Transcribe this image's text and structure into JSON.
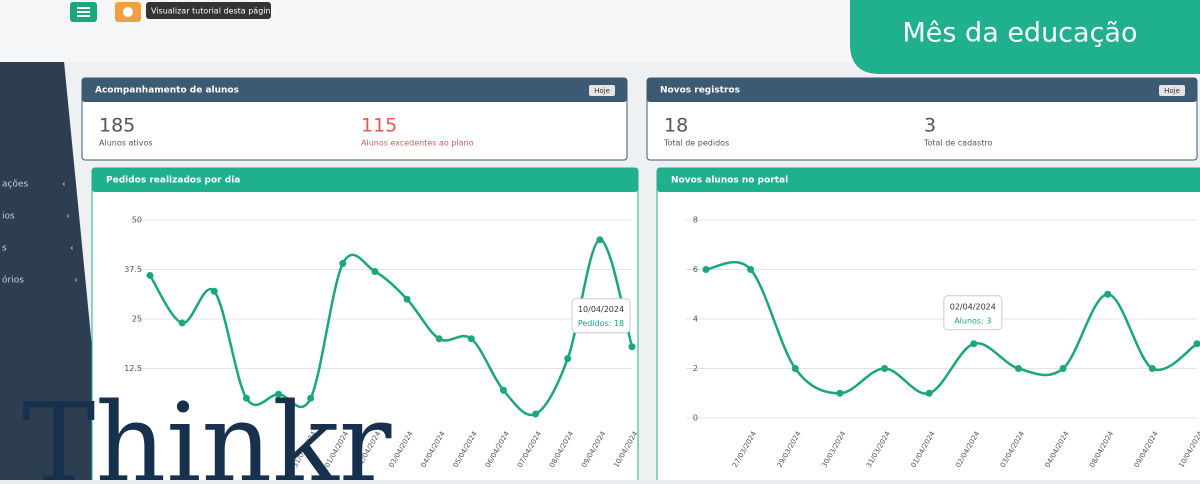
{
  "topbar": {
    "tooltip": "Visualizar tutorial desta página"
  },
  "banner": {
    "title": "Mês da educação"
  },
  "sidebar": {
    "items": [
      "ações",
      "ios",
      "s",
      "órios"
    ]
  },
  "logo": {
    "text": "Thinkr"
  },
  "panels": [
    {
      "title": "Acompanhamento de alunos",
      "button": "Hoje",
      "stats": [
        {
          "value": 185,
          "label": "Alunos ativos",
          "color": "#555555"
        },
        {
          "value": 115,
          "label": "Alunos excedentes ao plano",
          "color": "#e05a5a"
        }
      ]
    },
    {
      "title": "Novos registros",
      "button": "Hoje",
      "stats": [
        {
          "value": 18,
          "label": "Total de pedidos",
          "color": "#555555"
        },
        {
          "value": 3,
          "label": "Total de cadastro",
          "color": "#555555"
        }
      ]
    }
  ],
  "charts": [
    {
      "type": "line",
      "title": "Pedidos realizados por dia",
      "color": "#1aa67f",
      "categories": [
        null,
        null,
        null,
        null,
        null,
        "31/03/2024",
        "01/04/2024",
        "02/04/2024",
        "03/04/2024",
        "04/04/2024",
        "05/04/2024",
        "06/04/2024",
        "07/04/2024",
        "08/04/2024",
        "09/04/2024",
        "10/04/2024"
      ],
      "values": [
        36,
        24,
        32,
        5,
        6,
        5,
        39,
        37,
        30,
        20,
        20,
        7,
        1,
        15,
        45,
        18
      ],
      "ylim": [
        0,
        50
      ],
      "yticks": [
        12.5,
        25,
        37.5,
        50
      ],
      "tooltip": {
        "date": "10/04/2024",
        "text": "Pedidos: 18"
      }
    },
    {
      "type": "line",
      "title": "Novos alunos no portal",
      "color": "#1aa67f",
      "categories": [
        null,
        "27/03/2024",
        "29/03/2024",
        "30/03/2024",
        "31/03/2024",
        "01/04/2024",
        "02/04/2024",
        "03/04/2024",
        "04/04/2024",
        "08/04/2024",
        "09/04/2024",
        "10/04/2024"
      ],
      "values": [
        6,
        6,
        2,
        1,
        2,
        1,
        3,
        2,
        2,
        5,
        2,
        3
      ],
      "ylim": [
        0,
        8
      ],
      "yticks": [
        0,
        2,
        4,
        6,
        8
      ],
      "tooltip": {
        "date": "02/04/2024",
        "text": "Alunos: 3"
      }
    }
  ]
}
